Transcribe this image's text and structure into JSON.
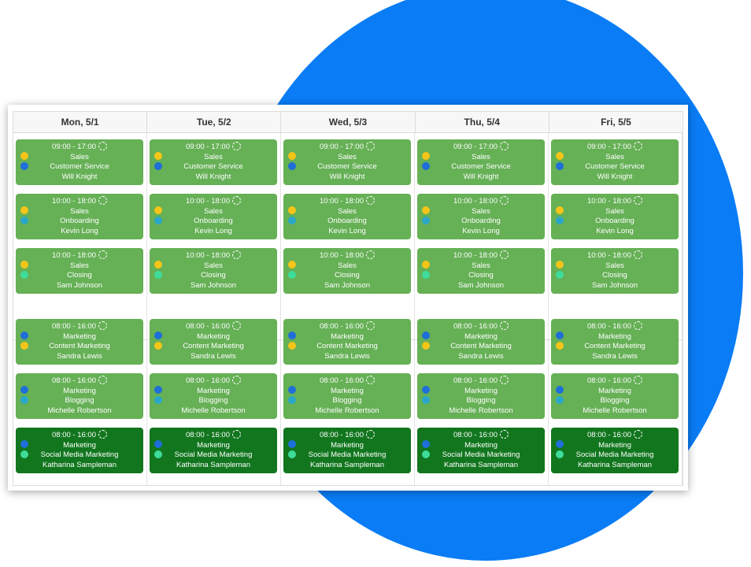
{
  "colors": {
    "accent_circle": "#0a7cf5",
    "shift_green": "#66b056",
    "shift_dark_green": "#12761e",
    "dot_yellow": "#f5c518",
    "dot_blue": "#1e6fd9",
    "dot_teal": "#2aa7c8",
    "dot_mint": "#3ddc9a"
  },
  "days": [
    {
      "label": "Mon, 5/1"
    },
    {
      "label": "Tue, 5/2"
    },
    {
      "label": "Wed, 5/3"
    },
    {
      "label": "Thu, 5/4"
    },
    {
      "label": "Fri, 5/5"
    }
  ],
  "shifts": [
    {
      "time": "09:00 - 17:00",
      "department": "Sales",
      "role": "Customer Service",
      "employee": "Will Knight",
      "dots": [
        "yellow",
        "blue"
      ],
      "style": "normal",
      "icon": "recurring-icon"
    },
    {
      "time": "10:00 - 18:00",
      "department": "Sales",
      "role": "Onboarding",
      "employee": "Kevin Long",
      "dots": [
        "yellow",
        "teal"
      ],
      "style": "normal",
      "icon": "recurring-icon"
    },
    {
      "time": "10:00 - 18:00",
      "department": "Sales",
      "role": "Closing",
      "employee": "Sam Johnson",
      "dots": [
        "yellow",
        "mint"
      ],
      "style": "normal",
      "icon": "recurring-icon"
    },
    {
      "time": "08:00 - 16:00",
      "department": "Marketing",
      "role": "Content Marketing",
      "employee": "Sandra Lewis",
      "dots": [
        "blue",
        "yellow"
      ],
      "style": "normal",
      "icon": "recurring-icon"
    },
    {
      "time": "08:00 - 16:00",
      "department": "Marketing",
      "role": "Blogging",
      "employee": "Michelle Robertson",
      "dots": [
        "blue",
        "teal"
      ],
      "style": "normal",
      "icon": "recurring-icon"
    },
    {
      "time": "08:00 - 16:00",
      "department": "Marketing",
      "role": "Social Media Marketing",
      "employee": "Katharina Sampleman",
      "dots": [
        "blue",
        "mint"
      ],
      "style": "dark",
      "icon": "recurring-icon"
    }
  ]
}
